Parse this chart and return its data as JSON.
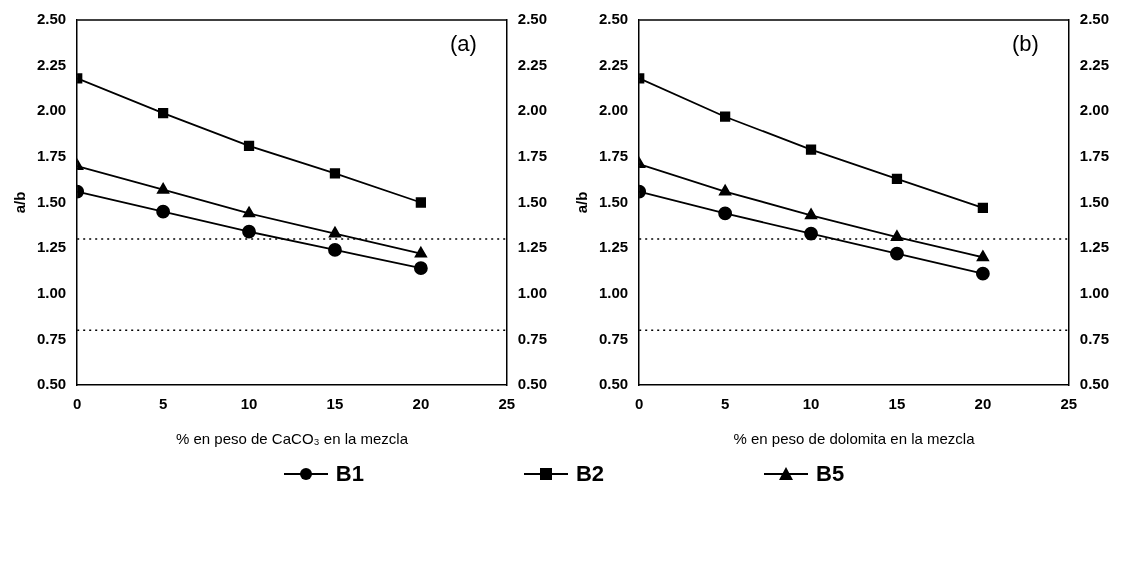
{
  "chart_data": [
    {
      "type": "line",
      "annotations": [
        "(a)"
      ],
      "xlabel": "% en peso de CaCO₃ en la mezcla",
      "ylabel": "a/b",
      "x": [
        0,
        5,
        10,
        15,
        20
      ],
      "xlim": [
        0,
        25
      ],
      "xticks": [
        0,
        5,
        10,
        15,
        20,
        25
      ],
      "ylim": [
        0.5,
        2.5
      ],
      "yticks": [
        {
          "value": 0.5,
          "label": "0.50"
        },
        0.75,
        {
          "value": 1,
          "label": "1.00"
        },
        1.25,
        {
          "value": 1.5,
          "label": "1.50"
        },
        1.75,
        {
          "value": 2,
          "label": "2.00"
        },
        2.25,
        {
          "value": 2.5,
          "label": "2.50"
        }
      ],
      "y2lim": [
        0.5,
        2.5
      ],
      "y2ticks": [
        {
          "value": 0.5,
          "label": "0.50"
        },
        0.75,
        {
          "value": 1,
          "label": "1.00"
        },
        1.25,
        {
          "value": 1.5,
          "label": "1.50"
        },
        1.75,
        {
          "value": 2,
          "label": "2.00"
        },
        2.25,
        {
          "value": 2.5,
          "label": "2.50"
        }
      ],
      "grid": false,
      "legend": "bottom",
      "line_style": "solid",
      "series": [
        {
          "name": "B1",
          "color": "#000000",
          "marker": "circle",
          "values": [
            1.56,
            1.45,
            1.34,
            1.24,
            1.14
          ]
        },
        {
          "name": "B2",
          "color": "#000000",
          "marker": "square",
          "values": [
            2.18,
            1.99,
            1.81,
            1.66,
            1.5
          ]
        },
        {
          "name": "B5",
          "color": "#000000",
          "marker": "triangle",
          "values": [
            1.7,
            1.57,
            1.44,
            1.33,
            1.22
          ]
        }
      ],
      "ref_lines": [
        {
          "axis": "y",
          "value": 1.3,
          "color": "#000000",
          "line_style": "dotted"
        },
        {
          "axis": "y",
          "value": 0.8,
          "color": "#000000",
          "line_style": "dotted"
        }
      ]
    },
    {
      "type": "line",
      "annotations": [
        "(b)"
      ],
      "xlabel": "% en peso de dolomita en la mezcla",
      "ylabel": "a/b",
      "x": [
        0,
        5,
        10,
        15,
        20
      ],
      "xlim": [
        0,
        25
      ],
      "xticks": [
        0,
        5,
        10,
        15,
        20,
        25
      ],
      "ylim": [
        0.5,
        2.5
      ],
      "yticks": [
        {
          "value": 0.5,
          "label": "0.50"
        },
        0.75,
        {
          "value": 1,
          "label": "1.00"
        },
        1.25,
        {
          "value": 1.5,
          "label": "1.50"
        },
        1.75,
        {
          "value": 2,
          "label": "2.00"
        },
        2.25,
        {
          "value": 2.5,
          "label": "2.50"
        }
      ],
      "y2lim": [
        0.5,
        2.5
      ],
      "y2ticks": [
        {
          "value": 0.5,
          "label": "0.50"
        },
        0.75,
        {
          "value": 1,
          "label": "1.00"
        },
        1.25,
        {
          "value": 1.5,
          "label": "1.50"
        },
        1.75,
        {
          "value": 2,
          "label": "2.00"
        },
        2.25,
        {
          "value": 2.5,
          "label": "2.50"
        }
      ],
      "grid": false,
      "line_style": "solid",
      "series": [
        {
          "color": "#000000",
          "marker": "circle",
          "values": [
            1.56,
            1.44,
            1.33,
            1.22,
            1.11
          ]
        },
        {
          "color": "#000000",
          "marker": "square",
          "values": [
            2.18,
            1.97,
            1.79,
            1.63,
            1.47
          ]
        },
        {
          "color": "#000000",
          "marker": "triangle",
          "values": [
            1.71,
            1.56,
            1.43,
            1.31,
            1.2
          ]
        }
      ],
      "ref_lines": [
        {
          "axis": "y",
          "value": 1.3,
          "color": "#000000",
          "line_style": "dotted"
        },
        {
          "axis": "y",
          "value": 0.8,
          "color": "#000000",
          "line_style": "dotted"
        }
      ]
    }
  ]
}
